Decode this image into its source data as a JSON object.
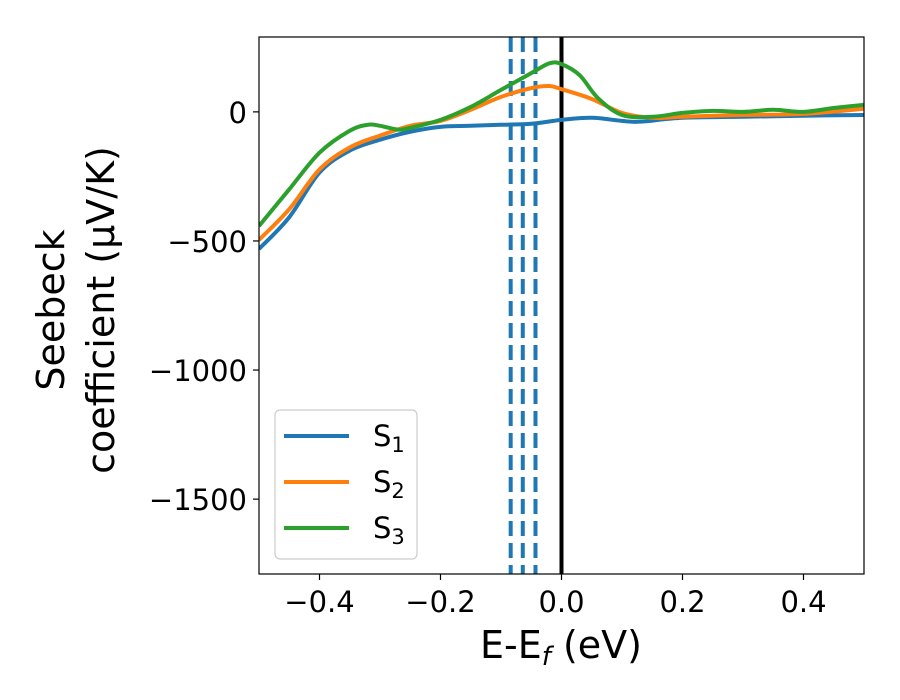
{
  "chart_data": {
    "type": "line",
    "title": "",
    "xlabel": "E-E",
    "xlabel_sub": "f",
    "xlabel_unit": " (eV)",
    "ylabel_line1": "Seebeck",
    "ylabel_line2": "coefficient  (μV/K)",
    "xlim": [
      -0.5,
      0.5
    ],
    "ylim": [
      -1790,
      290
    ],
    "xticks": [
      -0.4,
      -0.2,
      0.0,
      0.2,
      0.4
    ],
    "xtick_labels": [
      "−0.4",
      "−0.2",
      "0.0",
      "0.2",
      "0.4"
    ],
    "yticks": [
      0,
      -500,
      -1000,
      -1500
    ],
    "ytick_labels": [
      "0",
      "−500",
      "−1000",
      "−1500"
    ],
    "grid": false,
    "legend_position": "lower-left",
    "series": [
      {
        "name": "S1",
        "label_main": "S",
        "label_sub": "1",
        "color": "#1f77b4",
        "x": [
          -0.5,
          -0.45,
          -0.4,
          -0.35,
          -0.3,
          -0.25,
          -0.2,
          -0.15,
          -0.1,
          -0.05,
          0.0,
          0.05,
          0.1,
          0.13,
          0.2,
          0.3,
          0.4,
          0.5
        ],
        "y": [
          -531,
          -408,
          -235,
          -150,
          -108,
          -77,
          -58,
          -54,
          -50,
          -46,
          -31,
          -23,
          -35,
          -38,
          -23,
          -19,
          -15,
          -12
        ]
      },
      {
        "name": "S2",
        "label_main": "S",
        "label_sub": "2",
        "color": "#ff7f0e",
        "x": [
          -0.5,
          -0.45,
          -0.4,
          -0.35,
          -0.3,
          -0.25,
          -0.2,
          -0.15,
          -0.1,
          -0.05,
          -0.02,
          0.0,
          0.05,
          0.1,
          0.15,
          0.2,
          0.3,
          0.4,
          0.5
        ],
        "y": [
          -496,
          -377,
          -223,
          -138,
          -92,
          -54,
          -35,
          8,
          58,
          92,
          100,
          88,
          50,
          -4,
          -23,
          -19,
          -12,
          -8,
          12
        ]
      },
      {
        "name": "S3",
        "label_main": "S",
        "label_sub": "3",
        "color": "#2ca02c",
        "x": [
          -0.5,
          -0.45,
          -0.4,
          -0.35,
          -0.32,
          -0.3,
          -0.27,
          -0.25,
          -0.2,
          -0.15,
          -0.1,
          -0.05,
          -0.02,
          0.0,
          0.03,
          0.06,
          0.1,
          0.15,
          0.2,
          0.25,
          0.3,
          0.35,
          0.4,
          0.45,
          0.5
        ],
        "y": [
          -442,
          -300,
          -158,
          -73,
          -50,
          -54,
          -69,
          -62,
          -31,
          19,
          85,
          150,
          188,
          185,
          142,
          54,
          -12,
          -19,
          -4,
          4,
          0,
          8,
          0,
          15,
          27
        ]
      }
    ],
    "vlines": [
      {
        "x": -0.084,
        "color": "#1f77b4",
        "style": "dashed"
      },
      {
        "x": -0.064,
        "color": "#1f77b4",
        "style": "dashed"
      },
      {
        "x": -0.043,
        "color": "#1f77b4",
        "style": "dashed"
      },
      {
        "x": 0.0,
        "color": "#000000",
        "style": "solid"
      }
    ]
  }
}
